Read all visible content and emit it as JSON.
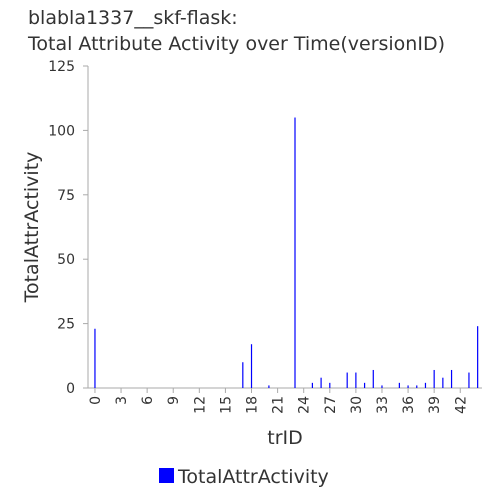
{
  "chart_data": {
    "type": "bar",
    "title": [
      "blabla1337__skf-flask:",
      "Total Attribute Activity over Time(versionID)"
    ],
    "xlabel": "trID",
    "ylabel": "TotalAttrActivity",
    "x": [
      0,
      17,
      18,
      20,
      23,
      25,
      26,
      27,
      29,
      30,
      31,
      32,
      33,
      35,
      36,
      37,
      38,
      39,
      40,
      41,
      43,
      44
    ],
    "series": [
      {
        "name": "TotalAttrActivity",
        "color": "#0000ff",
        "values": [
          23,
          10,
          17,
          1,
          105,
          2,
          4,
          2,
          6,
          6,
          2,
          7,
          1,
          2,
          1,
          1,
          2,
          7,
          4,
          7,
          6,
          24
        ]
      }
    ],
    "xlim": [
      -0.8,
      44.5
    ],
    "xticks": [
      0,
      3,
      6,
      9,
      12,
      15,
      18,
      21,
      24,
      27,
      30,
      33,
      36,
      39,
      42
    ],
    "ylim": [
      0,
      125
    ],
    "yticks": [
      0,
      25,
      50,
      75,
      100,
      125
    ],
    "legend": "bottom"
  }
}
